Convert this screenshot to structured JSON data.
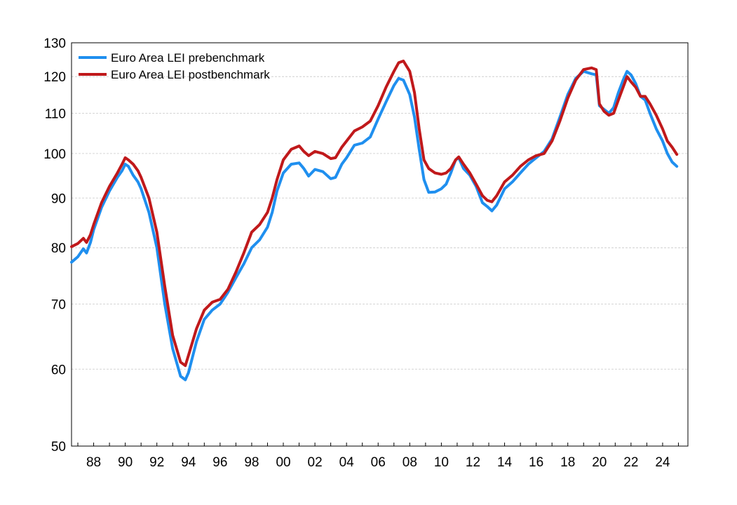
{
  "chart_data": {
    "type": "line",
    "title": "",
    "xlabel": "",
    "ylabel": "",
    "y_scale": "log",
    "ylim": [
      50,
      130
    ],
    "xlim": [
      1986.6,
      2025.6
    ],
    "grid": true,
    "legend_position": "top-left",
    "y_ticks": [
      50,
      60,
      70,
      80,
      90,
      100,
      110,
      120,
      130
    ],
    "y_tick_labels": [
      "50",
      "60",
      "70",
      "80",
      "90",
      "100",
      "110",
      "120",
      "130"
    ],
    "x_tick_positions": [
      1988,
      1990,
      1992,
      1994,
      1996,
      1998,
      2000,
      2002,
      2004,
      2006,
      2008,
      2010,
      2012,
      2014,
      2016,
      2018,
      2020,
      2022,
      2024
    ],
    "x_tick_labels": [
      "88",
      "90",
      "92",
      "94",
      "96",
      "98",
      "00",
      "02",
      "04",
      "06",
      "08",
      "10",
      "12",
      "14",
      "16",
      "18",
      "20",
      "22",
      "24"
    ],
    "series": [
      {
        "name": "Euro Area LEI prebenchmark",
        "color": "#1f8fef",
        "points": [
          [
            1986.6,
            77.3
          ],
          [
            1987.0,
            78.3
          ],
          [
            1987.35,
            79.8
          ],
          [
            1987.55,
            79.0
          ],
          [
            1987.8,
            81.0
          ],
          [
            1988.0,
            83.5
          ],
          [
            1988.5,
            88.0
          ],
          [
            1989.0,
            91.5
          ],
          [
            1989.5,
            94.5
          ],
          [
            1989.8,
            96.0
          ],
          [
            1990.0,
            97.5
          ],
          [
            1990.2,
            97.0
          ],
          [
            1990.5,
            95.0
          ],
          [
            1990.8,
            93.5
          ],
          [
            1991.0,
            92.0
          ],
          [
            1991.5,
            87.0
          ],
          [
            1992.0,
            80.0
          ],
          [
            1992.5,
            70.0
          ],
          [
            1993.0,
            63.0
          ],
          [
            1993.5,
            59.0
          ],
          [
            1993.8,
            58.5
          ],
          [
            1994.0,
            59.5
          ],
          [
            1994.5,
            64.0
          ],
          [
            1995.0,
            67.5
          ],
          [
            1995.5,
            69.0
          ],
          [
            1996.0,
            70.0
          ],
          [
            1996.5,
            72.0
          ],
          [
            1997.0,
            74.5
          ],
          [
            1997.5,
            77.0
          ],
          [
            1998.0,
            80.0
          ],
          [
            1998.5,
            81.5
          ],
          [
            1999.0,
            84.0
          ],
          [
            1999.3,
            87.0
          ],
          [
            1999.6,
            91.5
          ],
          [
            2000.0,
            95.5
          ],
          [
            2000.5,
            97.5
          ],
          [
            2001.0,
            97.8
          ],
          [
            2001.3,
            96.5
          ],
          [
            2001.6,
            94.8
          ],
          [
            2002.0,
            96.3
          ],
          [
            2002.5,
            95.8
          ],
          [
            2003.0,
            94.2
          ],
          [
            2003.3,
            94.5
          ],
          [
            2003.7,
            97.5
          ],
          [
            2004.0,
            99.0
          ],
          [
            2004.5,
            102.0
          ],
          [
            2005.0,
            102.5
          ],
          [
            2005.5,
            104.0
          ],
          [
            2006.0,
            108.5
          ],
          [
            2006.5,
            113.0
          ],
          [
            2007.0,
            117.5
          ],
          [
            2007.3,
            119.5
          ],
          [
            2007.6,
            119.0
          ],
          [
            2008.0,
            115.0
          ],
          [
            2008.3,
            109.0
          ],
          [
            2008.6,
            101.0
          ],
          [
            2008.9,
            94.0
          ],
          [
            2009.2,
            91.2
          ],
          [
            2009.6,
            91.3
          ],
          [
            2010.0,
            92.0
          ],
          [
            2010.3,
            93.0
          ],
          [
            2010.6,
            95.5
          ],
          [
            2010.9,
            98.5
          ],
          [
            2011.1,
            99.0
          ],
          [
            2011.4,
            96.5
          ],
          [
            2011.8,
            95.0
          ],
          [
            2012.2,
            92.5
          ],
          [
            2012.6,
            89.0
          ],
          [
            2012.9,
            88.2
          ],
          [
            2013.2,
            87.3
          ],
          [
            2013.5,
            88.5
          ],
          [
            2014.0,
            92.0
          ],
          [
            2014.5,
            93.5
          ],
          [
            2015.0,
            95.5
          ],
          [
            2015.5,
            97.5
          ],
          [
            2016.0,
            99.0
          ],
          [
            2016.5,
            100.5
          ],
          [
            2017.0,
            103.5
          ],
          [
            2017.5,
            109.0
          ],
          [
            2018.0,
            115.0
          ],
          [
            2018.5,
            119.5
          ],
          [
            2019.0,
            121.5
          ],
          [
            2019.5,
            120.8
          ],
          [
            2019.8,
            120.5
          ],
          [
            2020.0,
            112.0
          ],
          [
            2020.3,
            111.0
          ],
          [
            2020.6,
            110.0
          ],
          [
            2020.9,
            111.5
          ],
          [
            2021.2,
            115.5
          ],
          [
            2021.5,
            119.0
          ],
          [
            2021.75,
            121.5
          ],
          [
            2022.0,
            120.5
          ],
          [
            2022.3,
            118.0
          ],
          [
            2022.6,
            114.5
          ],
          [
            2022.9,
            113.5
          ],
          [
            2023.2,
            110.0
          ],
          [
            2023.6,
            106.0
          ],
          [
            2024.0,
            103.0
          ],
          [
            2024.3,
            100.0
          ],
          [
            2024.6,
            98.0
          ],
          [
            2024.9,
            97.0
          ]
        ]
      },
      {
        "name": "Euro Area LEI postbenchmark",
        "color": "#c0191b",
        "points": [
          [
            1986.6,
            80.2
          ],
          [
            1987.0,
            80.8
          ],
          [
            1987.35,
            81.8
          ],
          [
            1987.55,
            81.0
          ],
          [
            1987.8,
            82.5
          ],
          [
            1988.0,
            84.5
          ],
          [
            1988.5,
            89.0
          ],
          [
            1989.0,
            92.5
          ],
          [
            1989.5,
            95.5
          ],
          [
            1989.8,
            97.5
          ],
          [
            1990.0,
            99.0
          ],
          [
            1990.2,
            98.5
          ],
          [
            1990.5,
            97.5
          ],
          [
            1990.8,
            96.0
          ],
          [
            1991.0,
            94.5
          ],
          [
            1991.5,
            90.0
          ],
          [
            1992.0,
            83.0
          ],
          [
            1992.5,
            73.0
          ],
          [
            1993.0,
            65.0
          ],
          [
            1993.5,
            61.0
          ],
          [
            1993.8,
            60.5
          ],
          [
            1994.0,
            62.0
          ],
          [
            1994.5,
            66.0
          ],
          [
            1995.0,
            69.0
          ],
          [
            1995.5,
            70.3
          ],
          [
            1996.0,
            70.8
          ],
          [
            1996.5,
            72.5
          ],
          [
            1997.0,
            75.5
          ],
          [
            1997.5,
            79.0
          ],
          [
            1998.0,
            83.0
          ],
          [
            1998.5,
            84.5
          ],
          [
            1999.0,
            87.0
          ],
          [
            1999.3,
            90.0
          ],
          [
            1999.6,
            94.0
          ],
          [
            2000.0,
            98.5
          ],
          [
            2000.5,
            101.0
          ],
          [
            2001.0,
            101.8
          ],
          [
            2001.3,
            100.5
          ],
          [
            2001.6,
            99.5
          ],
          [
            2002.0,
            100.5
          ],
          [
            2002.5,
            100.0
          ],
          [
            2003.0,
            98.8
          ],
          [
            2003.3,
            99.0
          ],
          [
            2003.7,
            101.5
          ],
          [
            2004.0,
            103.0
          ],
          [
            2004.5,
            105.5
          ],
          [
            2005.0,
            106.5
          ],
          [
            2005.5,
            108.0
          ],
          [
            2006.0,
            112.0
          ],
          [
            2006.5,
            117.0
          ],
          [
            2007.0,
            121.5
          ],
          [
            2007.3,
            124.0
          ],
          [
            2007.6,
            124.5
          ],
          [
            2008.0,
            121.5
          ],
          [
            2008.3,
            115.5
          ],
          [
            2008.6,
            106.0
          ],
          [
            2008.9,
            98.5
          ],
          [
            2009.2,
            96.5
          ],
          [
            2009.6,
            95.5
          ],
          [
            2010.0,
            95.2
          ],
          [
            2010.3,
            95.5
          ],
          [
            2010.6,
            96.5
          ],
          [
            2010.9,
            98.5
          ],
          [
            2011.1,
            99.2
          ],
          [
            2011.4,
            97.5
          ],
          [
            2011.8,
            95.5
          ],
          [
            2012.2,
            93.0
          ],
          [
            2012.6,
            90.5
          ],
          [
            2012.9,
            89.5
          ],
          [
            2013.2,
            89.2
          ],
          [
            2013.5,
            90.5
          ],
          [
            2014.0,
            93.5
          ],
          [
            2014.5,
            95.0
          ],
          [
            2015.0,
            97.0
          ],
          [
            2015.5,
            98.5
          ],
          [
            2016.0,
            99.5
          ],
          [
            2016.5,
            100.0
          ],
          [
            2017.0,
            103.0
          ],
          [
            2017.5,
            108.0
          ],
          [
            2018.0,
            114.0
          ],
          [
            2018.5,
            119.0
          ],
          [
            2019.0,
            122.0
          ],
          [
            2019.5,
            122.5
          ],
          [
            2019.8,
            122.0
          ],
          [
            2020.0,
            112.5
          ],
          [
            2020.3,
            110.5
          ],
          [
            2020.6,
            109.5
          ],
          [
            2020.9,
            110.0
          ],
          [
            2021.2,
            113.5
          ],
          [
            2021.5,
            117.0
          ],
          [
            2021.75,
            120.0
          ],
          [
            2022.0,
            118.5
          ],
          [
            2022.3,
            117.0
          ],
          [
            2022.6,
            114.5
          ],
          [
            2022.9,
            114.5
          ],
          [
            2023.2,
            112.5
          ],
          [
            2023.6,
            109.5
          ],
          [
            2024.0,
            106.0
          ],
          [
            2024.3,
            103.0
          ],
          [
            2024.6,
            101.5
          ],
          [
            2024.9,
            99.8
          ]
        ]
      }
    ]
  }
}
